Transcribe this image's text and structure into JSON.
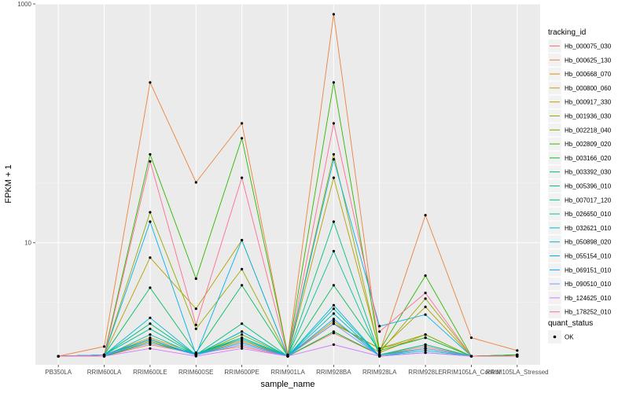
{
  "chart_data": {
    "type": "line",
    "xlabel": "sample_name",
    "ylabel": "FPKM + 1",
    "y_scale": "log10",
    "ylim": [
      0.95,
      1000
    ],
    "y_ticks": [
      {
        "value": 10,
        "label": "10"
      },
      {
        "value": 1000,
        "label": "1000"
      }
    ],
    "grid": true,
    "categories": [
      "PB350LA",
      "RRIM600LA",
      "RRIM600LE",
      "RRIM600SE",
      "RRIM600PE",
      "RRIM901LA",
      "RRIM928BA",
      "RRIM928LA",
      "RRIM928LE",
      "RRIM105LA_Control",
      "RRIM105LA_Stressed"
    ],
    "legend": {
      "title": "tracking_id",
      "placement": "right",
      "quant_title": "quant_status",
      "quant_label": "OK"
    },
    "series": [
      {
        "name": "Hb_000075_030",
        "color": "#F8766D",
        "values": [
          1.12,
          1.12,
          1.4,
          1.18,
          1.35,
          1.12,
          1.75,
          1.15,
          1.35,
          1.12,
          1.12
        ]
      },
      {
        "name": "Hb_000625_130",
        "color": "#EC823C",
        "values": [
          1.12,
          1.35,
          220,
          32,
          100,
          1.15,
          820,
          1.2,
          17,
          1.6,
          1.25
        ]
      },
      {
        "name": "Hb_000668_070",
        "color": "#DD8D00",
        "values": [
          1.12,
          1.12,
          1.55,
          1.15,
          1.5,
          1.12,
          2.1,
          1.3,
          1.6,
          1.12,
          1.15
        ]
      },
      {
        "name": "Hb_000800_060",
        "color": "#CA9700",
        "values": [
          1.12,
          1.15,
          1.6,
          1.18,
          1.55,
          1.12,
          2.2,
          1.2,
          1.7,
          1.12,
          1.15
        ]
      },
      {
        "name": "Hb_000917_330",
        "color": "#B3A000",
        "values": [
          1.12,
          1.15,
          7.5,
          2.8,
          10.5,
          1.12,
          35,
          1.25,
          2.9,
          1.12,
          1.15
        ]
      },
      {
        "name": "Hb_001936_030",
        "color": "#97A900",
        "values": [
          1.12,
          1.15,
          18,
          1.9,
          6.0,
          1.12,
          55,
          1.2,
          3.4,
          1.12,
          1.15
        ]
      },
      {
        "name": "Hb_002218_040",
        "color": "#71B000",
        "values": [
          1.12,
          1.12,
          1.5,
          1.15,
          1.7,
          1.12,
          2.1,
          1.3,
          1.7,
          1.12,
          1.12
        ]
      },
      {
        "name": "Hb_002809_020",
        "color": "#2FB600",
        "values": [
          1.12,
          1.15,
          55,
          5.0,
          75,
          1.15,
          220,
          1.25,
          5.3,
          1.12,
          1.15
        ]
      },
      {
        "name": "Hb_003166_020",
        "color": "#00BA38",
        "values": [
          1.12,
          1.12,
          1.45,
          1.18,
          1.6,
          1.12,
          1.8,
          1.15,
          1.4,
          1.12,
          1.15
        ]
      },
      {
        "name": "Hb_003392_030",
        "color": "#00BD5C",
        "values": [
          1.12,
          1.15,
          4.2,
          1.2,
          4.4,
          1.12,
          4.4,
          1.25,
          1.6,
          1.12,
          1.12
        ]
      },
      {
        "name": "Hb_005396_010",
        "color": "#00C07B",
        "values": [
          1.12,
          1.15,
          2.1,
          1.15,
          2.1,
          1.12,
          15,
          1.15,
          1.3,
          1.12,
          1.12
        ]
      },
      {
        "name": "Hb_007017_120",
        "color": "#00C097",
        "values": [
          1.12,
          1.15,
          1.9,
          1.15,
          1.8,
          1.12,
          8.5,
          1.15,
          1.4,
          1.12,
          1.12
        ]
      },
      {
        "name": "Hb_026650_010",
        "color": "#00BEAF",
        "values": [
          1.12,
          1.12,
          1.7,
          1.15,
          1.6,
          1.12,
          2.8,
          1.12,
          1.3,
          1.12,
          1.12
        ]
      },
      {
        "name": "Hb_032621_010",
        "color": "#00BBC3",
        "values": [
          1.12,
          1.12,
          1.55,
          1.15,
          1.55,
          1.12,
          2.55,
          1.12,
          1.25,
          1.12,
          1.12
        ]
      },
      {
        "name": "Hb_050898_020",
        "color": "#00B7D8",
        "values": [
          1.12,
          1.15,
          2.35,
          1.15,
          1.8,
          1.12,
          3.0,
          1.12,
          1.3,
          1.12,
          1.12
        ]
      },
      {
        "name": "Hb_055154_010",
        "color": "#00B2EB",
        "values": [
          1.12,
          1.15,
          15,
          1.15,
          10.5,
          1.12,
          50,
          2.0,
          2.5,
          1.12,
          1.12
        ]
      },
      {
        "name": "Hb_069151_010",
        "color": "#00A5FF",
        "values": [
          1.12,
          1.15,
          1.55,
          1.15,
          1.45,
          1.12,
          2.3,
          1.12,
          1.2,
          1.12,
          1.12
        ]
      },
      {
        "name": "Hb_090510_010",
        "color": "#7F96FF",
        "values": [
          1.12,
          1.15,
          1.45,
          1.15,
          1.4,
          1.12,
          2.1,
          1.12,
          1.3,
          1.12,
          1.12
        ]
      },
      {
        "name": "Hb_124625_010",
        "color": "#D277FF",
        "values": [
          1.12,
          1.12,
          1.3,
          1.12,
          1.3,
          1.12,
          1.4,
          1.12,
          1.2,
          1.12,
          1.12
        ]
      },
      {
        "name": "Hb_178252_010",
        "color": "#FF6C91",
        "values": [
          1.12,
          1.12,
          48,
          2.05,
          35,
          1.12,
          100,
          1.8,
          3.8,
          1.12,
          1.12
        ]
      }
    ]
  }
}
